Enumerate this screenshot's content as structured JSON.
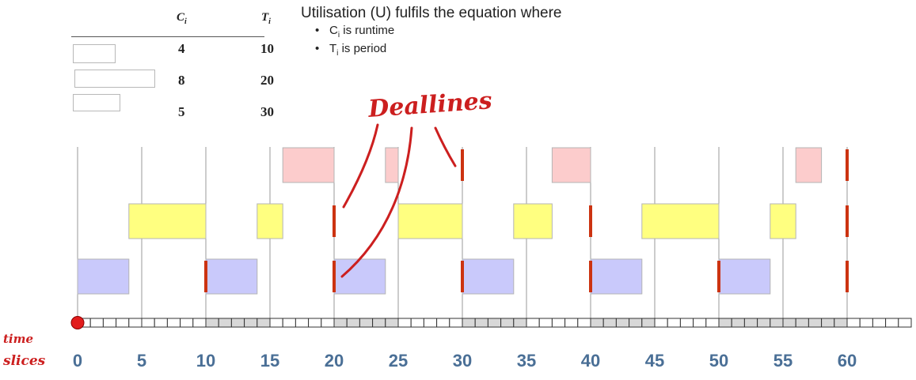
{
  "task_table": {
    "header_c": "C",
    "header_c_sub": "i",
    "header_t": "T",
    "header_t_sub": "i",
    "rows": [
      {
        "C": "4",
        "T": "10",
        "color": "#c9c9fb"
      },
      {
        "C": "8",
        "T": "20",
        "color": "#ffff80"
      },
      {
        "C": "5",
        "T": "30",
        "color": "#fccccc"
      }
    ]
  },
  "explanation": {
    "title": "Utilisation (U) fulfils the equation where",
    "bullets": [
      {
        "symbol": "C",
        "sub": "i",
        "text": " is runtime"
      },
      {
        "symbol": "T",
        "sub": "i",
        "text": " is period"
      }
    ]
  },
  "annotations": {
    "deadlines": "Deallines",
    "time": "time",
    "slices": "slices"
  },
  "colors": {
    "deadline": "#cc3311",
    "pen": "#cc1f1f",
    "tick_label": "#4a6f96",
    "gridline": "#999999"
  },
  "schedule": {
    "time_max": 65,
    "tick_labels": [
      "0",
      "5",
      "10",
      "15",
      "20",
      "25",
      "30",
      "35",
      "40",
      "45",
      "50",
      "55",
      "60"
    ],
    "shaded_slice_ranges": [
      [
        10,
        15
      ],
      [
        20,
        25
      ],
      [
        30,
        35
      ],
      [
        40,
        45
      ],
      [
        50,
        55
      ],
      [
        55,
        60
      ]
    ],
    "lanes": [
      {
        "task": 3,
        "color": "#fccccc",
        "bars": [
          [
            16,
            20
          ],
          [
            24,
            25
          ],
          [
            37,
            40
          ],
          [
            56,
            58
          ]
        ],
        "deadlines": [
          30,
          60
        ]
      },
      {
        "task": 2,
        "color": "#ffff80",
        "bars": [
          [
            4,
            10
          ],
          [
            14,
            16
          ],
          [
            25,
            30
          ],
          [
            34,
            37
          ],
          [
            44,
            50
          ],
          [
            54,
            56
          ]
        ],
        "deadlines": [
          20,
          40,
          60
        ]
      },
      {
        "task": 1,
        "color": "#c9c9fb",
        "bars": [
          [
            0,
            4
          ],
          [
            10,
            14
          ],
          [
            20,
            24
          ],
          [
            30,
            34
          ],
          [
            40,
            44
          ],
          [
            50,
            54
          ]
        ],
        "deadlines": [
          10,
          20,
          30,
          40,
          50,
          60
        ]
      }
    ]
  }
}
